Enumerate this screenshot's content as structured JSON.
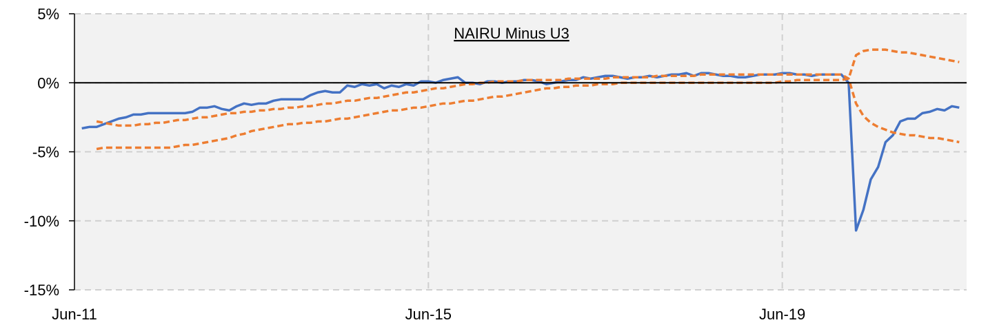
{
  "chart_data": {
    "type": "line",
    "title": "NAIRU Minus U3",
    "categories": [
      "Jun-11",
      null,
      null,
      null,
      null,
      null,
      null,
      null,
      null,
      null,
      null,
      null,
      null,
      null,
      null,
      null,
      null,
      null,
      null,
      null,
      null,
      null,
      null,
      null,
      null,
      null,
      null,
      null,
      null,
      null,
      null,
      null,
      null,
      null,
      null,
      null,
      null,
      null,
      null,
      null,
      null,
      null,
      null,
      null,
      null,
      null,
      null,
      null,
      "Jun-15",
      null,
      null,
      null,
      null,
      null,
      null,
      null,
      null,
      null,
      null,
      null,
      null,
      null,
      null,
      null,
      null,
      null,
      null,
      null,
      null,
      null,
      null,
      null,
      null,
      null,
      null,
      null,
      null,
      null,
      null,
      null,
      null,
      null,
      null,
      null,
      null,
      null,
      null,
      null,
      null,
      null,
      null,
      null,
      null,
      null,
      null,
      null,
      "Jun-19",
      null,
      null,
      null,
      null,
      null,
      null,
      null,
      null,
      null,
      null,
      null,
      null,
      null,
      null,
      null,
      null,
      null,
      null,
      null,
      null,
      null,
      null,
      null,
      null,
      null
    ],
    "series": [
      {
        "color": "#4472c4",
        "dashed": false,
        "values": [
          null,
          -3.3,
          -3.2,
          -3.2,
          -3.0,
          -2.8,
          -2.6,
          -2.5,
          -2.3,
          -2.3,
          -2.2,
          -2.2,
          -2.2,
          -2.2,
          -2.2,
          -2.2,
          -2.1,
          -1.8,
          -1.8,
          -1.7,
          -1.9,
          -2.0,
          -1.7,
          -1.5,
          -1.6,
          -1.5,
          -1.5,
          -1.3,
          -1.2,
          -1.2,
          -1.2,
          -1.2,
          -0.9,
          -0.7,
          -0.6,
          -0.7,
          -0.7,
          -0.2,
          -0.3,
          -0.1,
          -0.2,
          -0.1,
          -0.4,
          -0.2,
          -0.3,
          -0.1,
          -0.2,
          0.1,
          0.1,
          0.0,
          0.2,
          0.3,
          0.4,
          0.0,
          0.0,
          -0.1,
          0.1,
          0.1,
          0.0,
          0.1,
          0.1,
          0.2,
          0.2,
          0.1,
          -0.1,
          0.0,
          0.1,
          0.2,
          0.2,
          0.4,
          0.3,
          0.4,
          0.5,
          0.5,
          0.4,
          0.3,
          0.4,
          0.4,
          0.5,
          0.4,
          0.5,
          0.6,
          0.6,
          0.7,
          0.5,
          0.7,
          0.7,
          0.6,
          0.5,
          0.5,
          0.4,
          0.4,
          0.5,
          0.6,
          0.6,
          0.6,
          0.7,
          0.7,
          0.6,
          0.6,
          0.5,
          0.6,
          0.6,
          0.6,
          0.6,
          0.0,
          -10.7,
          -9.2,
          -7.0,
          -6.1,
          -4.3,
          -3.8,
          -2.8,
          -2.6,
          -2.6,
          -2.2,
          -2.1,
          -1.9,
          -2.0,
          -1.7,
          -1.8,
          null
        ]
      },
      {
        "color": "#ed7d31",
        "dashed": true,
        "values": [
          null,
          null,
          null,
          -2.8,
          -2.9,
          -3.0,
          -3.1,
          -3.1,
          -3.1,
          -3.0,
          -3.0,
          -2.9,
          -2.9,
          -2.8,
          -2.7,
          -2.7,
          -2.6,
          -2.5,
          -2.5,
          -2.4,
          -2.3,
          -2.2,
          -2.2,
          -2.1,
          -2.1,
          -2.0,
          -2.0,
          -1.9,
          -1.9,
          -1.8,
          -1.8,
          -1.7,
          -1.7,
          -1.6,
          -1.5,
          -1.5,
          -1.4,
          -1.3,
          -1.3,
          -1.2,
          -1.1,
          -1.1,
          -1.0,
          -0.9,
          -0.8,
          -0.7,
          -0.7,
          -0.6,
          -0.5,
          -0.4,
          -0.4,
          -0.3,
          -0.2,
          -0.1,
          -0.1,
          0.0,
          0.0,
          0.1,
          0.1,
          0.1,
          0.1,
          0.2,
          0.2,
          0.2,
          0.2,
          0.2,
          0.2,
          0.3,
          0.3,
          0.3,
          0.3,
          0.3,
          0.3,
          0.4,
          0.4,
          0.4,
          0.4,
          0.4,
          0.4,
          0.5,
          0.5,
          0.5,
          0.5,
          0.5,
          0.5,
          0.6,
          0.6,
          0.6,
          0.6,
          0.6,
          0.6,
          0.6,
          0.6,
          0.6,
          0.6,
          0.6,
          0.6,
          0.6,
          0.6,
          0.6,
          0.6,
          0.6,
          0.6,
          0.6,
          0.6,
          0.3,
          -1.5,
          -2.4,
          -2.9,
          -3.2,
          -3.4,
          -3.6,
          -3.7,
          -3.8,
          -3.8,
          -3.9,
          -4.0,
          -4.0,
          -4.1,
          -4.2,
          -4.3,
          null
        ]
      },
      {
        "color": "#ed7d31",
        "dashed": true,
        "values": [
          null,
          null,
          null,
          -4.8,
          -4.7,
          -4.7,
          -4.7,
          -4.7,
          -4.7,
          -4.7,
          -4.7,
          -4.7,
          -4.7,
          -4.7,
          -4.6,
          -4.5,
          -4.5,
          -4.4,
          -4.3,
          -4.2,
          -4.1,
          -4.0,
          -3.8,
          -3.7,
          -3.5,
          -3.4,
          -3.3,
          -3.2,
          -3.1,
          -3.0,
          -3.0,
          -2.9,
          -2.9,
          -2.8,
          -2.8,
          -2.7,
          -2.6,
          -2.6,
          -2.5,
          -2.4,
          -2.3,
          -2.2,
          -2.1,
          -2.0,
          -2.0,
          -1.9,
          -1.8,
          -1.8,
          -1.7,
          -1.6,
          -1.5,
          -1.5,
          -1.4,
          -1.3,
          -1.3,
          -1.2,
          -1.1,
          -1.0,
          -1.0,
          -0.9,
          -0.8,
          -0.7,
          -0.6,
          -0.5,
          -0.4,
          -0.4,
          -0.3,
          -0.3,
          -0.2,
          -0.2,
          -0.2,
          -0.1,
          -0.1,
          -0.1,
          0.0,
          0.0,
          0.0,
          0.0,
          0.0,
          0.0,
          0.0,
          0.0,
          0.0,
          0.0,
          0.0,
          0.0,
          0.0,
          0.0,
          0.0,
          0.0,
          0.0,
          0.0,
          0.0,
          0.0,
          0.0,
          0.0,
          0.1,
          0.1,
          0.2,
          0.2,
          0.2,
          0.2,
          0.2,
          0.2,
          0.2,
          0.3,
          2.0,
          2.3,
          2.4,
          2.4,
          2.4,
          2.3,
          2.2,
          2.2,
          2.1,
          2.0,
          1.9,
          1.8,
          1.7,
          1.6,
          1.5,
          null
        ]
      }
    ],
    "ylim": [
      -15,
      5
    ],
    "yticks": [
      {
        "value": -15,
        "label": "-15%"
      },
      {
        "value": -10,
        "label": "-10%"
      },
      {
        "value": -5,
        "label": "-5%"
      },
      {
        "value": 0,
        "label": "0%"
      },
      {
        "value": 5,
        "label": "5%"
      }
    ],
    "grid": true
  }
}
